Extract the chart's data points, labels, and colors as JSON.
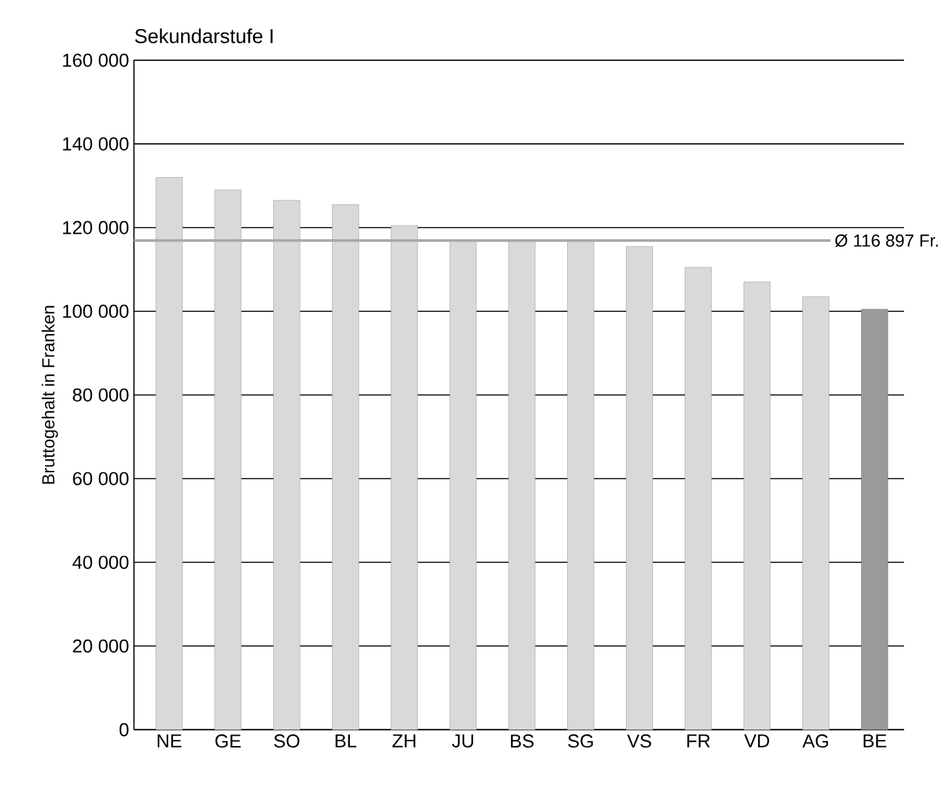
{
  "chart_data": {
    "type": "bar",
    "title": "Sekundarstufe I",
    "ylabel": "Bruttogehalt in Franken",
    "categories": [
      "NE",
      "GE",
      "SO",
      "BL",
      "ZH",
      "JU",
      "BS",
      "SG",
      "VS",
      "FR",
      "VD",
      "AG",
      "BE"
    ],
    "values": [
      132000,
      129000,
      126500,
      125500,
      120500,
      117000,
      117000,
      117000,
      115500,
      110500,
      107000,
      103500,
      100500
    ],
    "colors": [
      "#d9d9d9",
      "#d9d9d9",
      "#d9d9d9",
      "#d9d9d9",
      "#d9d9d9",
      "#d9d9d9",
      "#d9d9d9",
      "#d9d9d9",
      "#d9d9d9",
      "#d9d9d9",
      "#d9d9d9",
      "#d9d9d9",
      "#9a9a9a"
    ],
    "ylim": [
      0,
      160000
    ],
    "yticks": [
      {
        "value": 0,
        "label": "0"
      },
      {
        "value": 20000,
        "label": "20 000"
      },
      {
        "value": 40000,
        "label": "40 000"
      },
      {
        "value": 60000,
        "label": "60 000"
      },
      {
        "value": 80000,
        "label": "80 000"
      },
      {
        "value": 100000,
        "label": "100 000"
      },
      {
        "value": 120000,
        "label": "120 000"
      },
      {
        "value": 140000,
        "label": "140 000"
      },
      {
        "value": 160000,
        "label": "160 000"
      }
    ],
    "grid": "y",
    "ref_lines": [
      {
        "axis": "y",
        "value": 116897,
        "label": "Ø 116 897 Fr.",
        "color": "#a8a8a8"
      }
    ]
  }
}
